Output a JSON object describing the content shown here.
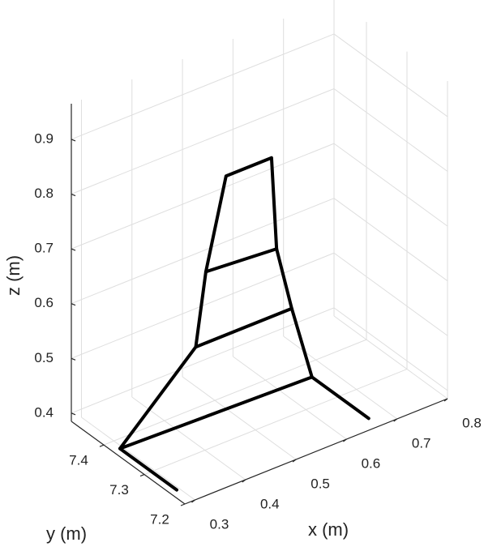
{
  "chart_data": {
    "type": "line3d",
    "xlabel": "x (m)",
    "ylabel": "y (m)",
    "zlabel": "z (m)",
    "xlim": [
      0.28,
      0.8
    ],
    "ylim": [
      7.2,
      7.48
    ],
    "zlim": [
      0.385,
      0.965
    ],
    "xticks": [
      0.3,
      0.4,
      0.5,
      0.6,
      0.7,
      0.8
    ],
    "yticks": [
      7.2,
      7.3,
      7.4
    ],
    "zticks": [
      0.4,
      0.5,
      0.6,
      0.7,
      0.8,
      0.9
    ],
    "grid": true,
    "series": [
      {
        "color": "#000000",
        "x": [
          0.28,
          0.43,
          0.45,
          0.49,
          0.58,
          0.59,
          0.62,
          0.66,
          0.28
        ],
        "y": [
          7.36,
          7.36,
          7.36,
          7.36,
          7.36,
          7.36,
          7.36,
          7.36,
          7.36
        ],
        "z": [
          0.4,
          0.53,
          0.66,
          0.82,
          0.82,
          0.65,
          0.53,
          0.39,
          0.4
        ]
      },
      {
        "color": "#000000",
        "x": [
          0.45,
          0.59
        ],
        "y": [
          7.36,
          7.36
        ],
        "z": [
          0.66,
          0.65
        ]
      },
      {
        "color": "#000000",
        "x": [
          0.43,
          0.62
        ],
        "y": [
          7.36,
          7.36
        ],
        "z": [
          0.53,
          0.53
        ]
      },
      {
        "color": "#000000",
        "x": [
          0.28,
          0.28
        ],
        "y": [
          7.36,
          7.22
        ],
        "z": [
          0.4,
          0.4
        ]
      },
      {
        "color": "#000000",
        "x": [
          0.66,
          0.66
        ],
        "y": [
          7.36,
          7.22
        ],
        "z": [
          0.39,
          0.39
        ]
      }
    ]
  }
}
